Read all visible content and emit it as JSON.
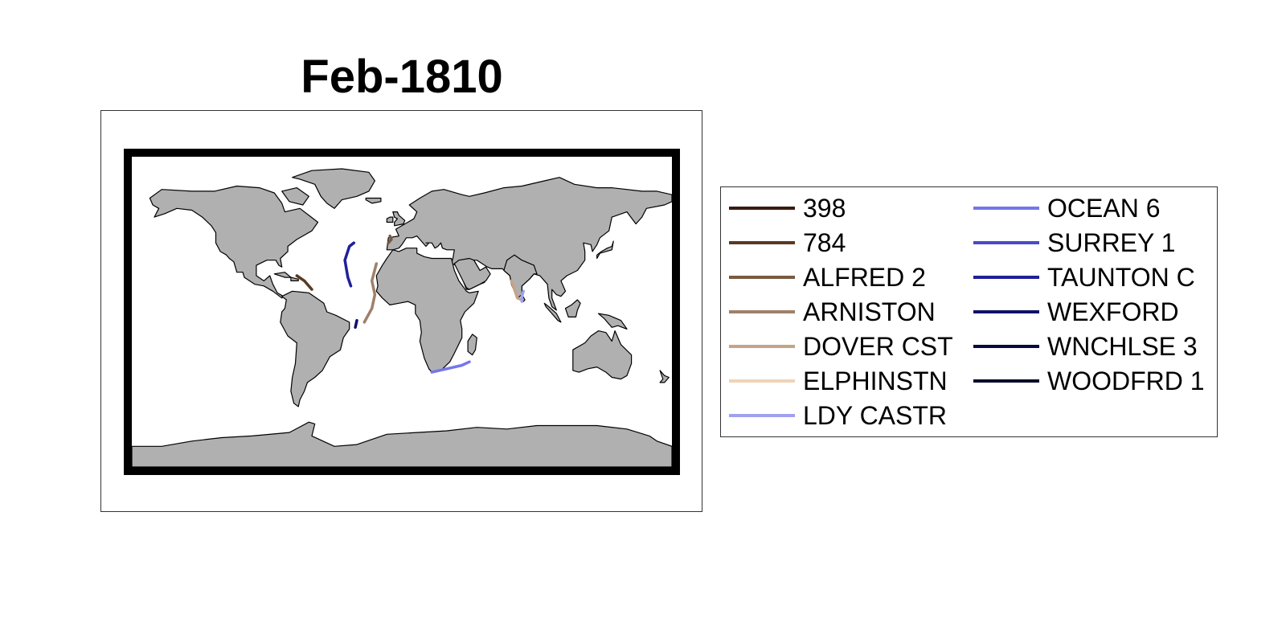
{
  "title": "Feb-1810",
  "map": {
    "land_color": "#b0b0b0",
    "coast_color": "#000000",
    "ocean_color": "#ffffff",
    "frame_color": "#000000"
  },
  "legend": {
    "items": [
      {
        "label": "398",
        "color": "#3b1a10"
      },
      {
        "label": "784",
        "color": "#5a3a22"
      },
      {
        "label": "ALFRED 2",
        "color": "#7a5a40"
      },
      {
        "label": "ARNISTON",
        "color": "#a0806a"
      },
      {
        "label": "DOVER CST",
        "color": "#c4a488"
      },
      {
        "label": "ELPHINSTN",
        "color": "#f0d4b8"
      },
      {
        "label": "LDY CASTR",
        "color": "#a0a0f0"
      },
      {
        "label": "OCEAN 6",
        "color": "#7676e8"
      },
      {
        "label": "SURREY 1",
        "color": "#4a4ac8"
      },
      {
        "label": "TAUNTON C",
        "color": "#20209a"
      },
      {
        "label": "WEXFORD",
        "color": "#10106a"
      },
      {
        "label": "WNCHLSE 3",
        "color": "#0a0a40"
      },
      {
        "label": "WOODFRD 1",
        "color": "#06062a"
      }
    ]
  },
  "tracks": [
    {
      "ship": "784",
      "color": "#5a3a22",
      "lonlat": [
        [
          -70,
          21
        ],
        [
          -65,
          18
        ],
        [
          -60,
          13
        ]
      ]
    },
    {
      "ship": "ALFRED 2",
      "color": "#7a5a40",
      "lonlat": [
        [
          -8,
          44
        ],
        [
          -7,
          42
        ],
        [
          -9,
          40
        ]
      ]
    },
    {
      "ship": "ARNISTON",
      "color": "#a0806a",
      "lonlat": [
        [
          -17,
          28
        ],
        [
          -20,
          18
        ],
        [
          -18,
          10
        ],
        [
          -20,
          2
        ],
        [
          -25,
          -6
        ]
      ]
    },
    {
      "ship": "DOVER CST",
      "color": "#c4a488",
      "lonlat": [
        [
          73,
          18
        ],
        [
          75,
          13
        ],
        [
          77,
          8
        ],
        [
          80,
          7
        ]
      ]
    },
    {
      "ship": "LDY CASTR",
      "color": "#a0a0f0",
      "lonlat": [
        [
          81,
          12
        ],
        [
          80,
          9
        ],
        [
          80,
          6
        ]
      ]
    },
    {
      "ship": "OCEAN 6",
      "color": "#7676e8",
      "lonlat": [
        [
          20,
          -35
        ],
        [
          30,
          -33
        ],
        [
          40,
          -31
        ],
        [
          45,
          -29
        ]
      ]
    },
    {
      "ship": "TAUNTON C",
      "color": "#20209a",
      "lonlat": [
        [
          -32,
          40
        ],
        [
          -35,
          38
        ],
        [
          -38,
          30
        ],
        [
          -36,
          20
        ],
        [
          -34,
          15
        ]
      ]
    },
    {
      "ship": "WEXFORD",
      "color": "#10106a",
      "lonlat": [
        [
          -30,
          -5
        ],
        [
          -31,
          -9
        ]
      ]
    }
  ]
}
